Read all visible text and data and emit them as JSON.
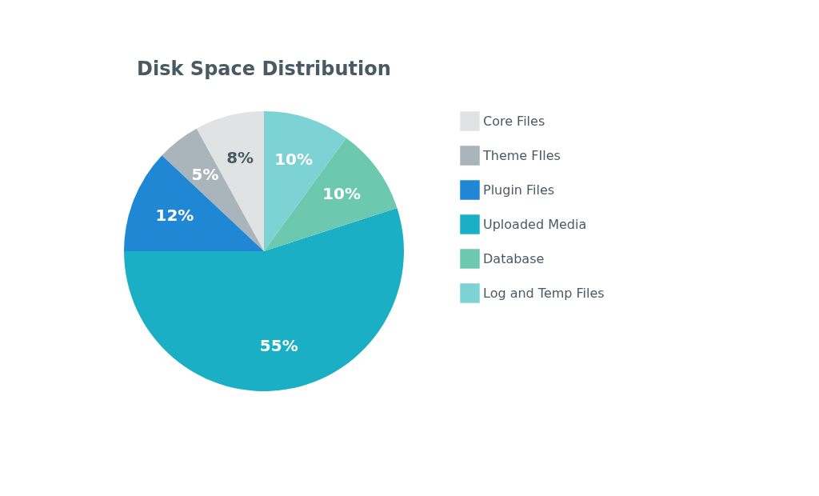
{
  "chart_data": {
    "type": "pie",
    "title": "Disk Space Distribution",
    "categories": [
      "Core Files",
      "Theme FIles",
      "Plugin Files",
      "Uploaded Media",
      "Database",
      "Log and Temp Files"
    ],
    "values": [
      8,
      5,
      12,
      55,
      10,
      10
    ],
    "colors": [
      "#e0e3e4",
      "#a9b4bb",
      "#2087d4",
      "#1aafc4",
      "#6cc9b0",
      "#7dd3d3"
    ],
    "value_labels": [
      "8%",
      "5%",
      "12%",
      "55%",
      "10%",
      "10%"
    ],
    "legend": "right"
  }
}
